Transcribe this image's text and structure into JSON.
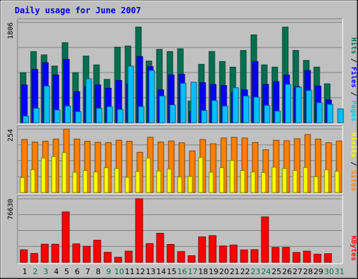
{
  "title": "Daily usage for June 2007",
  "colors": {
    "hits": "#007050",
    "files": "#0000ff",
    "pages": "#00c0ff",
    "visits": "#ffff00",
    "sites": "#ff8000",
    "kbytes": "#ff0000",
    "weekday_label": "#000000",
    "weekend_label": "#007050"
  },
  "chart_data": [
    {
      "type": "bar",
      "name_panel": "hits-files-pages",
      "categories": [
        "1",
        "2",
        "3",
        "4",
        "5",
        "6",
        "7",
        "8",
        "9",
        "10",
        "11",
        "12",
        "13",
        "14",
        "15",
        "16",
        "17",
        "18",
        "19",
        "20",
        "21",
        "22",
        "23",
        "24",
        "25",
        "26",
        "27",
        "28",
        "29",
        "30",
        "31"
      ],
      "ylim": [
        0,
        1806
      ],
      "tick_label": "1806",
      "series": [
        {
          "name": "Hits",
          "values": [
            900,
            1280,
            1220,
            1020,
            1440,
            900,
            1200,
            1040,
            780,
            1360,
            1380,
            1720,
            1110,
            1320,
            1280,
            1330,
            390,
            1050,
            1280,
            1100,
            1000,
            1300,
            1580,
            1040,
            1000,
            1720,
            1300,
            1120,
            1000,
            700,
            0
          ]
        },
        {
          "name": "Files",
          "values": [
            680,
            960,
            1080,
            860,
            1140,
            560,
            650,
            680,
            620,
            760,
            700,
            1190,
            1010,
            590,
            860,
            870,
            200,
            720,
            690,
            670,
            540,
            590,
            1100,
            690,
            740,
            860,
            650,
            940,
            660,
            410,
            0
          ]
        },
        {
          "name": "Pages",
          "values": [
            120,
            260,
            660,
            230,
            300,
            200,
            790,
            260,
            290,
            240,
            1020,
            290,
            940,
            480,
            320,
            710,
            730,
            220,
            400,
            300,
            630,
            480,
            460,
            310,
            210,
            690,
            640,
            580,
            360,
            330,
            250
          ]
        }
      ],
      "side_labels": [
        "Pages",
        "Files",
        "Hits"
      ]
    },
    {
      "type": "bar",
      "name_panel": "sites-visits",
      "categories": [
        "1",
        "2",
        "3",
        "4",
        "5",
        "6",
        "7",
        "8",
        "9",
        "10",
        "11",
        "12",
        "13",
        "14",
        "15",
        "16",
        "17",
        "18",
        "19",
        "20",
        "21",
        "22",
        "23",
        "24",
        "25",
        "26",
        "27",
        "28",
        "29",
        "30",
        "31"
      ],
      "ylim": [
        0,
        254
      ],
      "tick_label": "254",
      "series": [
        {
          "name": "Sites",
          "values": [
            212,
            202,
            205,
            214,
            254,
            214,
            205,
            201,
            200,
            209,
            205,
            161,
            221,
            202,
            206,
            199,
            166,
            212,
            195,
            218,
            221,
            218,
            200,
            171,
            209,
            207,
            215,
            232,
            214,
            199,
            206
          ]
        },
        {
          "name": "Visits",
          "values": [
            60,
            91,
            138,
            144,
            160,
            81,
            88,
            82,
            99,
            96,
            61,
            84,
            138,
            86,
            94,
            62,
            64,
            140,
            81,
            99,
            128,
            88,
            82,
            80,
            101,
            96,
            88,
            100,
            63,
            91,
            85
          ]
        }
      ],
      "side_labels": [
        "Sites",
        "Visits"
      ]
    },
    {
      "type": "bar",
      "name_panel": "kbytes",
      "categories": [
        "1",
        "2",
        "3",
        "4",
        "5",
        "6",
        "7",
        "8",
        "9",
        "10",
        "11",
        "12",
        "13",
        "14",
        "15",
        "16",
        "17",
        "18",
        "19",
        "20",
        "21",
        "22",
        "23",
        "24",
        "25",
        "26",
        "27",
        "28",
        "29",
        "30",
        "31"
      ],
      "ylim": [
        0,
        76630
      ],
      "tick_label": "76630",
      "series": [
        {
          "name": "KBytes",
          "values": [
            15000,
            10600,
            21700,
            21700,
            60800,
            22200,
            19300,
            26600,
            12000,
            6000,
            13400,
            76630,
            22500,
            35000,
            21500,
            12900,
            7900,
            30600,
            32100,
            19700,
            20800,
            14900,
            15200,
            54800,
            17900,
            17900,
            11800,
            13400,
            9800,
            10300,
            0
          ]
        }
      ],
      "side_labels": [
        "KBytes"
      ]
    }
  ],
  "x_labels": [
    "1",
    "2",
    "3",
    "4",
    "5",
    "6",
    "7",
    "8",
    "9",
    "10",
    "11",
    "12",
    "13",
    "14",
    "15",
    "16",
    "17",
    "18",
    "19",
    "20",
    "21",
    "22",
    "23",
    "24",
    "25",
    "26",
    "27",
    "28",
    "29",
    "30",
    "31"
  ],
  "weekend_days": [
    2,
    3,
    9,
    10,
    16,
    17,
    23,
    24,
    30,
    31
  ]
}
